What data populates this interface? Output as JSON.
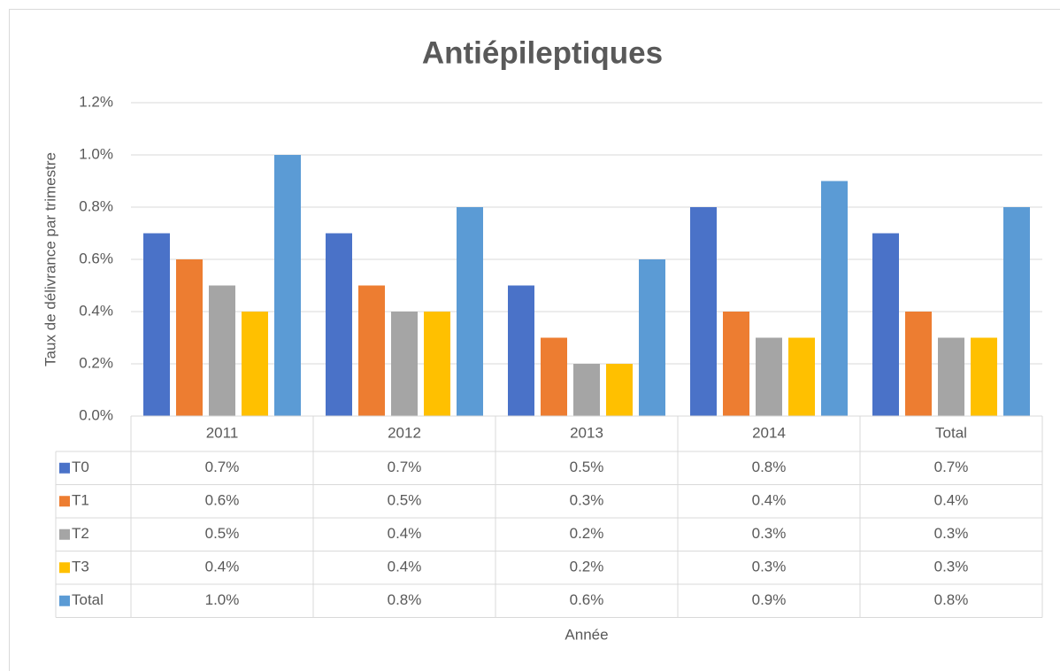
{
  "chart_data": {
    "type": "bar",
    "title": "Antiépileptiques",
    "y_label": "Taux de délivrance par trimestre",
    "x_label": "Année",
    "categories": [
      "2011",
      "2012",
      "2013",
      "2014",
      "Total"
    ],
    "series": [
      {
        "name": "T0",
        "color": "#4a72c8",
        "values": [
          0.7,
          0.7,
          0.5,
          0.8,
          0.7
        ],
        "value_labels": [
          "0.7%",
          "0.7%",
          "0.5%",
          "0.8%",
          "0.7%"
        ]
      },
      {
        "name": "T1",
        "color": "#ed7d31",
        "values": [
          0.6,
          0.5,
          0.3,
          0.4,
          0.4
        ],
        "value_labels": [
          "0.6%",
          "0.5%",
          "0.3%",
          "0.4%",
          "0.4%"
        ]
      },
      {
        "name": "T2",
        "color": "#a5a5a5",
        "values": [
          0.5,
          0.4,
          0.2,
          0.3,
          0.3
        ],
        "value_labels": [
          "0.5%",
          "0.4%",
          "0.2%",
          "0.3%",
          "0.3%"
        ]
      },
      {
        "name": "T3",
        "color": "#ffc000",
        "values": [
          0.4,
          0.4,
          0.2,
          0.3,
          0.3
        ],
        "value_labels": [
          "0.4%",
          "0.4%",
          "0.2%",
          "0.3%",
          "0.3%"
        ]
      },
      {
        "name": "Total",
        "color": "#5b9bd5",
        "values": [
          1.0,
          0.8,
          0.6,
          0.9,
          0.8
        ],
        "value_labels": [
          "1.0%",
          "0.8%",
          "0.6%",
          "0.9%",
          "0.8%"
        ]
      }
    ],
    "ylim": [
      0,
      1.2
    ],
    "yticks": [
      {
        "value": 0,
        "label": "0.0%"
      },
      {
        "value": 0.2,
        "label": "0.2%"
      },
      {
        "value": 0.4,
        "label": "0.4%"
      },
      {
        "value": 0.6,
        "label": "0.6%"
      },
      {
        "value": 0.8,
        "label": "0.8%"
      },
      {
        "value": 1.0,
        "label": "1.0%"
      },
      {
        "value": 1.2,
        "label": "1.2%"
      }
    ],
    "grid": true
  }
}
